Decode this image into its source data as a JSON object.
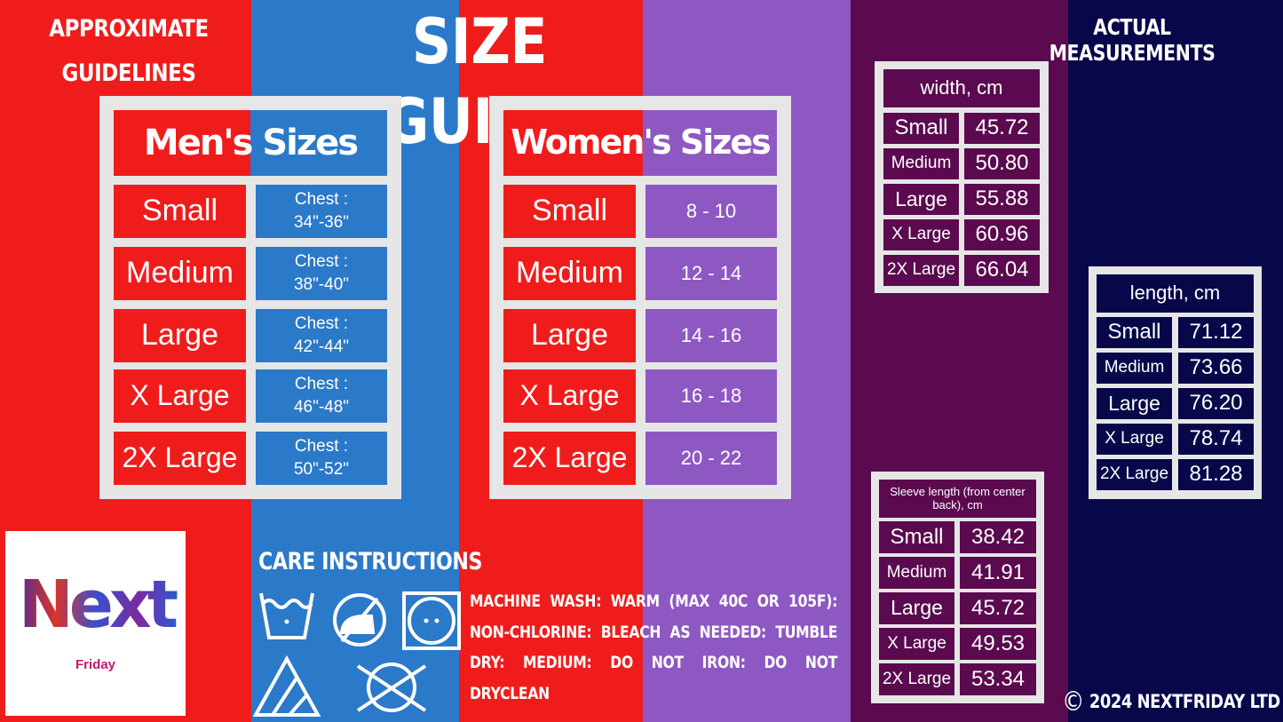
{
  "colors": {
    "red": "#f01c1c",
    "blue": "#2b79c9",
    "purple": "#8e58c3",
    "plum": "#5b0a4f",
    "navy": "#07074a",
    "frame": "#e6e6e6"
  },
  "header": {
    "left_note_line1": "APPROXIMATE",
    "left_note_line2": "GUIDELINES",
    "title": "SIZE GUIDE",
    "right_note": "ACTUAL MEASUREMENTS"
  },
  "mens": {
    "title": "Men's Sizes",
    "rows": [
      {
        "size": "Small",
        "value_line1": "Chest :",
        "value_line2": "34\"-36\""
      },
      {
        "size": "Medium",
        "value_line1": "Chest :",
        "value_line2": "38\"-40\""
      },
      {
        "size": "Large",
        "value_line1": "Chest :",
        "value_line2": "42\"-44\""
      },
      {
        "size": "X Large",
        "value_line1": "Chest :",
        "value_line2": "46\"-48\""
      },
      {
        "size": "2X Large",
        "value_line1": "Chest :",
        "value_line2": "50\"-52\""
      }
    ]
  },
  "womens": {
    "title": "Women's Sizes",
    "rows": [
      {
        "size": "Small",
        "value": "8 - 10"
      },
      {
        "size": "Medium",
        "value": "12 - 14"
      },
      {
        "size": "Large",
        "value": "14 - 16"
      },
      {
        "size": "X Large",
        "value": "16 - 18"
      },
      {
        "size": "2X Large",
        "value": "20 - 22"
      }
    ]
  },
  "width": {
    "title": "width, cm",
    "rows": [
      {
        "size": "Small",
        "value": "45.72"
      },
      {
        "size": "Medium",
        "value": "50.80"
      },
      {
        "size": "Large",
        "value": "55.88"
      },
      {
        "size": "X Large",
        "value": "60.96"
      },
      {
        "size": "2X Large",
        "value": "66.04"
      }
    ]
  },
  "length": {
    "title": "length, cm",
    "rows": [
      {
        "size": "Small",
        "value": "71.12"
      },
      {
        "size": "Medium",
        "value": "73.66"
      },
      {
        "size": "Large",
        "value": "76.20"
      },
      {
        "size": "X Large",
        "value": "78.74"
      },
      {
        "size": "2X Large",
        "value": "81.28"
      }
    ]
  },
  "sleeve": {
    "title": "Sleeve length (from center back), cm",
    "rows": [
      {
        "size": "Small",
        "value": "38.42"
      },
      {
        "size": "Medium",
        "value": "41.91"
      },
      {
        "size": "Large",
        "value": "45.72"
      },
      {
        "size": "X Large",
        "value": "49.53"
      },
      {
        "size": "2X Large",
        "value": "53.34"
      }
    ]
  },
  "care": {
    "title": "CARE INSTRUCTIONS",
    "text": "MACHINE WASH: WARM (MAX 40C OR 105F): NON-CHLORINE: BLEACH AS NEEDED: TUMBLE DRY: MEDIUM: DO NOT IRON: DO NOT DRYCLEAN",
    "icons": [
      "wash-warm-icon",
      "do-not-iron-icon",
      "tumble-dry-medium-icon",
      "bleach-allowed-icon",
      "do-not-dryclean-icon"
    ]
  },
  "logo": {
    "word": "Next",
    "sub": "Friday"
  },
  "copyright": {
    "symbol": "©",
    "text": "2024 NEXTFRIDAY LTD"
  }
}
